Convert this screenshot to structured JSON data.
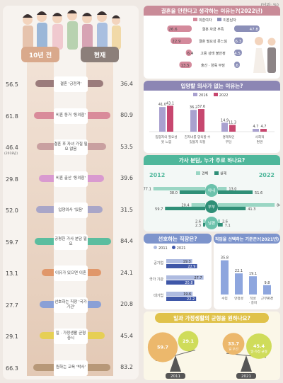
{
  "unit_note": "(단위: %)",
  "left_panel": {
    "header_before": "10년 전",
    "header_now": "현재",
    "rows": [
      {
        "label": "결혼 '긍정적'",
        "before": "56.5",
        "now": "36.4",
        "color": "#9b7c7c"
      },
      {
        "label": "비혼 동거 '동의함'",
        "before": "61.8",
        "now": "80.9",
        "color": "#d98b9a"
      },
      {
        "label": "결혼 후 자녀 가질 필요 없음",
        "before": "46.4",
        "before_note": "(2018년)",
        "now": "53.5",
        "color": "#c9a0a0"
      },
      {
        "label": "비혼 출산 '동의함'",
        "before": "29.8",
        "now": "39.6",
        "color": "#d99ad0"
      },
      {
        "label": "입양의사 '있음'",
        "before": "52.0",
        "now": "31.5",
        "color": "#a9a6c8"
      },
      {
        "label": "공평한 가사 분담 필요",
        "before": "59.7",
        "now": "84.4",
        "color": "#5bbd9f"
      },
      {
        "label": "이유가 있으면 이혼",
        "before": "13.1",
        "now": "24.1",
        "color": "#e0976a"
      },
      {
        "label": "선호하는 직장 '국가기관'",
        "before": "27.7",
        "now": "20.8",
        "color": "#8aa0d6"
      },
      {
        "label": "일 · 가정생활 균형 중시",
        "before": "29.1",
        "now": "45.4",
        "color": "#e6cf55"
      },
      {
        "label": "원하는 교육 '박사'",
        "before": "66.3",
        "now": "83.2",
        "color": "#b79878"
      }
    ]
  },
  "chart_data": [
    {
      "type": "bar",
      "title": "결혼을 안한다고 생각하는 이유는?(2022년)",
      "legend": [
        "미혼여자",
        "미혼남자"
      ],
      "categories": [
        "결혼 자금 부족",
        "결혼 필요성 못느낌",
        "고용 상태 불안정",
        "출산 · 양육 부담"
      ],
      "series": [
        {
          "name": "미혼여자",
          "values": [
            26.6,
            22.9,
            6.4,
            13.5
          ]
        },
        {
          "name": "미혼남자",
          "values": [
            47.8,
            16.3,
            14.5,
            10.6
          ]
        }
      ]
    },
    {
      "type": "bar",
      "title": "입양할 의사가 없는 이유는?",
      "legend": [
        "2016",
        "2022"
      ],
      "categories": [
        "입양자의 필요성 못 느낌",
        "친자녀를 양육할 수 있을지 걱정",
        "경제적인 부담",
        "사회적 편견"
      ],
      "series": [
        {
          "name": "2016",
          "values": [
            41.0,
            36.2,
            14.9,
            4.7
          ]
        },
        {
          "name": "2022",
          "values": [
            43.1,
            37.6,
            11.3,
            4.7
          ]
        }
      ]
    },
    {
      "type": "bar",
      "title": "가사 분담, 누가 주로 하나요?",
      "years": [
        "2012",
        "2022"
      ],
      "legend": [
        "견해",
        "실제"
      ],
      "categories": [
        "아내",
        "부부",
        "남편"
      ],
      "series": [
        {
          "name": "2012 견해",
          "values": [
            38.0,
            59.7,
            2.3
          ]
        },
        {
          "name": "2012 실제",
          "values": [
            77.1,
            20.4,
            2.6
          ]
        },
        {
          "name": "2022 견해",
          "values": [
            13.0,
            84.4,
            2.6
          ]
        },
        {
          "name": "2022 실제",
          "values": [
            51.6,
            41.3,
            7.1
          ]
        }
      ]
    },
    {
      "type": "bar",
      "title": "선호하는 직장은?",
      "legend": [
        "2011",
        "2021"
      ],
      "categories": [
        "공기업",
        "국가 기관",
        "대기업"
      ],
      "series": [
        {
          "name": "2011",
          "values": [
            19.3,
            27.7,
            19.6
          ]
        },
        {
          "name": "2021",
          "values": [
            22.9,
            20.8,
            22.2
          ]
        }
      ]
    },
    {
      "type": "bar",
      "title": "직업을 선택하는 기준은?(2021년)",
      "categories": [
        "수입",
        "안정성",
        "적성 · 흥미",
        "근무환경"
      ],
      "values": [
        35.8,
        22.1,
        19.1,
        9.8
      ]
    },
    {
      "type": "bar",
      "title": "일과 가정생활의 균형을 원하나요?",
      "categories": [
        "2011",
        "2021"
      ],
      "series": [
        {
          "name": "일 우선",
          "values": [
            59.7,
            33.7
          ]
        },
        {
          "name": "일 · 가정 균형",
          "values": [
            29.1,
            45.4
          ]
        }
      ],
      "labels": {
        "work_first": "일 우선",
        "balance": "일·가정 균형"
      }
    }
  ]
}
